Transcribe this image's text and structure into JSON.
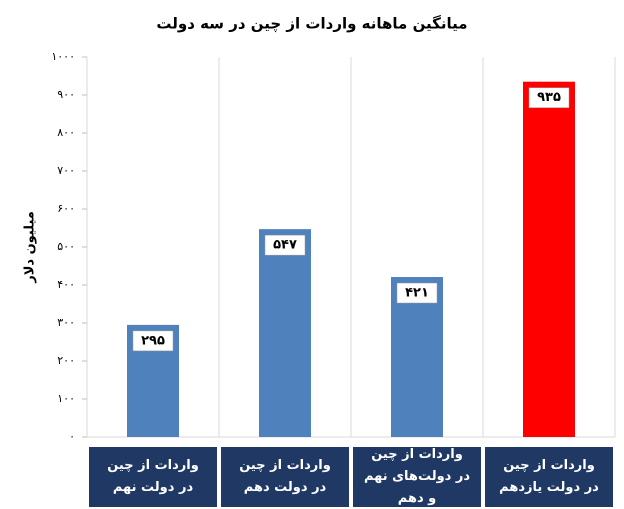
{
  "chart_data": {
    "type": "bar",
    "title": "میانگین ماهانه واردات از چین در سه دولت",
    "y_label": "میلیون دلار",
    "categories": [
      "واردات از چین در دولت نهم",
      "واردات از چین در دولت دهم",
      "واردات از چین در دولت‌های نهم و دهم",
      "واردات از چین در دولت یازدهم"
    ],
    "values": [
      295,
      547,
      421,
      935
    ],
    "value_labels": [
      "۲۹۵",
      "۵۴۷",
      "۴۲۱",
      "۹۳۵"
    ],
    "colors": [
      "#4f81bd",
      "#4f81bd",
      "#4f81bd",
      "#ff0000"
    ],
    "ylim": [
      0,
      1000
    ],
    "yticks": [
      {
        "value": 0,
        "label": "۰"
      },
      {
        "value": 100,
        "label": "۱۰۰"
      },
      {
        "value": 200,
        "label": "۲۰۰"
      },
      {
        "value": 300,
        "label": "۳۰۰"
      },
      {
        "value": 400,
        "label": "۴۰۰"
      },
      {
        "value": 500,
        "label": "۵۰۰"
      },
      {
        "value": 600,
        "label": "۶۰۰"
      },
      {
        "value": 700,
        "label": "۷۰۰"
      },
      {
        "value": 800,
        "label": "۸۰۰"
      },
      {
        "value": 900,
        "label": "۹۰۰"
      },
      {
        "value": 1000,
        "label": "۱۰۰۰"
      }
    ],
    "grid": false
  }
}
